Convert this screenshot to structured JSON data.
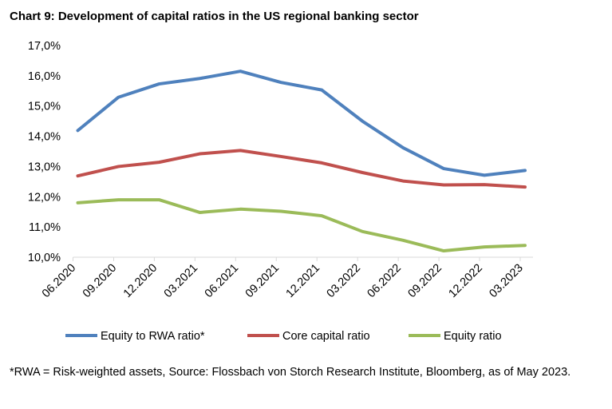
{
  "title": "Chart 9: Development of capital ratios in the US regional banking sector",
  "footnote": "*RWA = Risk-weighted assets, Source: Flossbach von Storch Research Institute, Bloomberg, as of May 2023.",
  "chart_data": {
    "type": "line",
    "title": "Chart 9: Development of capital ratios in the US regional banking sector",
    "categories": [
      "06.2020",
      "09.2020",
      "12.2020",
      "03.2021",
      "06.2021",
      "09.2021",
      "12.2021",
      "03.2022",
      "06.2022",
      "09.2022",
      "12.2022",
      "03.2023"
    ],
    "ylim": [
      10,
      17
    ],
    "yticks": [
      "10,0%",
      "11,0%",
      "12,0%",
      "13,0%",
      "14,0%",
      "15,0%",
      "16,0%",
      "17,0%"
    ],
    "grid": false,
    "legend": "bottom",
    "series": [
      {
        "name": "Equity to RWA ratio*",
        "color": "#4f81bd",
        "values": [
          14.19,
          15.29,
          15.73,
          15.91,
          16.15,
          15.78,
          15.53,
          14.5,
          13.62,
          12.93,
          12.71,
          12.87
        ]
      },
      {
        "name": "Core capital ratio",
        "color": "#c0504d",
        "values": [
          12.69,
          13.0,
          13.14,
          13.42,
          13.53,
          13.33,
          13.12,
          12.8,
          12.52,
          12.39,
          12.4,
          12.32
        ]
      },
      {
        "name": "Equity ratio",
        "color": "#9bbb59",
        "values": [
          11.8,
          11.9,
          11.9,
          11.48,
          11.59,
          11.52,
          11.37,
          10.85,
          10.56,
          10.21,
          10.34,
          10.39
        ]
      }
    ]
  }
}
